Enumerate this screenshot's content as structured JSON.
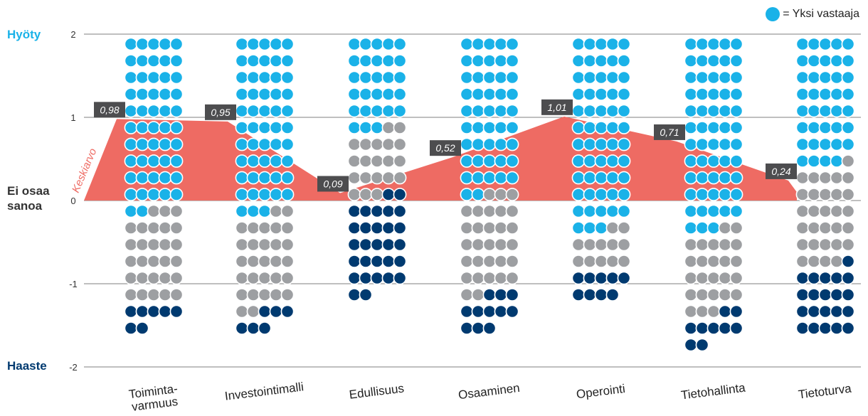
{
  "legend": {
    "label": "= Yksi vastaaja"
  },
  "side_labels": {
    "top": "Hyöty",
    "middle_line1": "Ei osaa",
    "middle_line2": "sanoa",
    "bottom": "Haaste"
  },
  "colors": {
    "benefit": "#1ab2e8",
    "neutral": "#9d9fa2",
    "challenge": "#003a70",
    "area": "#ee6b63",
    "label_bg": "#4d4d4f",
    "top_label": "#1ab2e8",
    "bottom_label": "#003a70",
    "middle_label": "#333333"
  },
  "chart_data": {
    "type": "area",
    "average_label": "Keskiarvo",
    "yticks": [
      "2",
      "1",
      "0",
      "-1",
      "-2"
    ],
    "ylim": [
      -2,
      2
    ],
    "categories": [
      "Toiminta-\nvarmuus",
      "Investointimalli",
      "Edullisuus",
      "Osaaminen",
      "Operointi",
      "Tietohallinta",
      "Tietoturva"
    ],
    "category_lines": [
      [
        "Toiminta-",
        "varmuus"
      ],
      [
        "Investointimalli"
      ],
      [
        "Edullisuus"
      ],
      [
        "Osaaminen"
      ],
      [
        "Operointi"
      ],
      [
        "Tietohallinta"
      ],
      [
        "Tietoturva"
      ]
    ],
    "averages": [
      0.98,
      0.95,
      0.09,
      0.52,
      1.01,
      0.71,
      0.24
    ],
    "average_labels": [
      "0,98",
      "0,95",
      "0,09",
      "0,52",
      "1,01",
      "0,71",
      "0,24"
    ],
    "respondents_per_row": 5,
    "series": [
      {
        "name": "Hyöty",
        "values": [
          52,
          53,
          28,
          47,
          58,
          58,
          39
        ]
      },
      {
        "name": "Ei osaa sanoa",
        "values": [
          28,
          29,
          20,
          30,
          12,
          25,
          30
        ]
      },
      {
        "name": "Haaste",
        "values": [
          7,
          6,
          29,
          11,
          9,
          9,
          21
        ]
      }
    ]
  }
}
